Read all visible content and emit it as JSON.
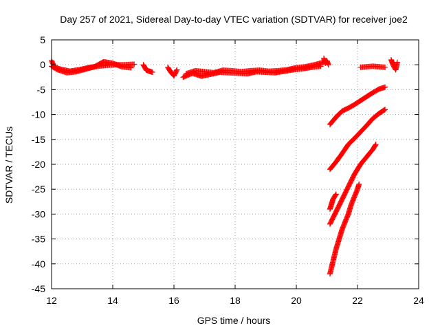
{
  "chart_data": {
    "type": "scatter",
    "title": "Day 257 of 2021, Sidereal Day-to-day VTEC variation (SDTVAR) for receiver joe2",
    "xlabel": "GPS time / hours",
    "ylabel": "SDTVAR / TECUs",
    "xlim": [
      12,
      24
    ],
    "ylim": [
      -45,
      5
    ],
    "xticks": [
      12,
      14,
      16,
      18,
      20,
      22,
      24
    ],
    "yticks": [
      5,
      0,
      -5,
      -10,
      -15,
      -20,
      -25,
      -30,
      -35,
      -40,
      -45
    ],
    "grid": true,
    "marker": "plus",
    "series_color": "#ff0000",
    "segments": [
      {
        "x": [
          12.0,
          12.1,
          12.3,
          12.6,
          12.9,
          13.2,
          13.5,
          13.8,
          14.1,
          14.4,
          14.7
        ],
        "y": [
          0.8,
          -0.5,
          -0.9,
          -1.3,
          -1.0,
          -0.6,
          -0.3,
          -0.1,
          0.0,
          0.0,
          0.1
        ]
      },
      {
        "x": [
          12.0,
          12.2,
          12.5,
          12.8,
          13.1,
          13.4,
          13.7,
          14.0,
          14.3,
          14.6
        ],
        "y": [
          -0.3,
          -1.0,
          -1.6,
          -1.4,
          -0.9,
          -0.4,
          0.6,
          0.3,
          -0.4,
          -0.6
        ]
      },
      {
        "x": [
          15.0,
          15.1,
          15.2,
          15.3
        ],
        "y": [
          0.0,
          -1.1,
          -1.3,
          -1.5
        ]
      },
      {
        "x": [
          15.8,
          15.9,
          16.0,
          16.1
        ],
        "y": [
          -0.5,
          -1.5,
          -2.2,
          -1.0
        ]
      },
      {
        "x": [
          16.3,
          16.6,
          16.9,
          17.2,
          17.5,
          17.8,
          18.1,
          18.4,
          18.7,
          19.0,
          19.3,
          19.6,
          19.9,
          20.2,
          20.5,
          20.8
        ],
        "y": [
          -2.5,
          -1.7,
          -2.3,
          -1.9,
          -1.5,
          -1.6,
          -1.7,
          -1.8,
          -1.4,
          -1.5,
          -1.6,
          -1.3,
          -1.0,
          -0.8,
          -0.5,
          -0.3
        ]
      },
      {
        "x": [
          16.4,
          16.7,
          17.0,
          17.3,
          17.6,
          17.9,
          18.2,
          18.5,
          18.8,
          19.1,
          19.4,
          19.7,
          20.0,
          20.3,
          20.6,
          20.9
        ],
        "y": [
          -1.8,
          -1.2,
          -1.4,
          -1.6,
          -1.1,
          -1.2,
          -1.4,
          -1.2,
          -1.1,
          -1.3,
          -1.2,
          -1.0,
          -0.6,
          -0.4,
          0.0,
          0.5
        ]
      },
      {
        "x": [
          20.9,
          20.95,
          21.0,
          21.05
        ],
        "y": [
          1.3,
          0.3,
          0.8,
          0.0
        ]
      },
      {
        "x": [
          22.1,
          22.3,
          22.5,
          22.7,
          22.9
        ],
        "y": [
          -0.5,
          -0.4,
          -0.3,
          -0.4,
          -0.5
        ]
      },
      {
        "x": [
          23.1,
          23.15,
          23.2,
          23.25,
          23.3
        ],
        "y": [
          1.0,
          0.2,
          -0.5,
          -1.0,
          0.5
        ]
      },
      {
        "x": [
          21.1,
          21.3,
          21.5,
          21.7,
          21.9,
          22.1,
          22.3,
          22.5,
          22.7,
          22.9
        ],
        "y": [
          -12.0,
          -10.5,
          -9.3,
          -8.7,
          -8.0,
          -7.2,
          -6.4,
          -5.6,
          -4.9,
          -4.5
        ]
      },
      {
        "x": [
          21.1,
          21.3,
          21.5,
          21.7,
          21.9,
          22.1,
          22.3,
          22.5,
          22.7,
          22.9
        ],
        "y": [
          -21.0,
          -19.5,
          -17.8,
          -16.0,
          -14.8,
          -13.5,
          -12.2,
          -10.8,
          -9.8,
          -9.0
        ]
      },
      {
        "x": [
          21.1,
          21.3,
          21.5,
          21.7,
          21.9,
          22.1,
          22.3,
          22.5,
          22.6
        ],
        "y": [
          -32.0,
          -29.5,
          -27.0,
          -24.5,
          -22.0,
          -20.0,
          -18.5,
          -17.0,
          -16.0
        ]
      },
      {
        "x": [
          21.1,
          21.15,
          21.2,
          21.3
        ],
        "y": [
          -29.0,
          -28.0,
          -27.0,
          -26.0
        ]
      },
      {
        "x": [
          21.1,
          21.2,
          21.3,
          21.4,
          21.5,
          21.6,
          21.7,
          21.8,
          21.9,
          22.0,
          22.05
        ],
        "y": [
          -42.0,
          -39.5,
          -37.0,
          -35.0,
          -33.0,
          -31.5,
          -30.0,
          -28.0,
          -26.5,
          -25.0,
          -24.0
        ]
      }
    ]
  }
}
